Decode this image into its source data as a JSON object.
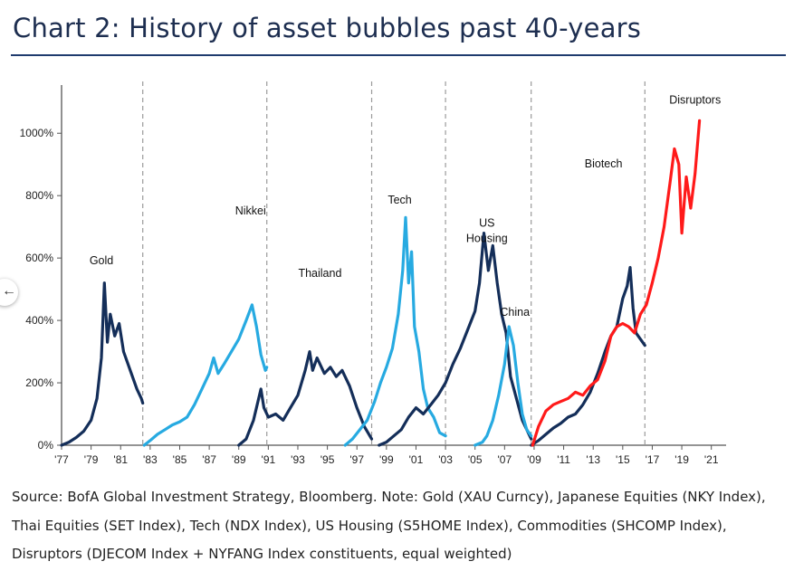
{
  "title": "Chart 2: History of asset bubbles past 40-years",
  "source_lines": [
    "Source: BofA Global Investment Strategy, Bloomberg. Note: Gold (XAU Curncy), Japanese Equities (NKY Index),",
    "Thai Equities (SET Index), Tech (NDX Index), US Housing (S5HOME Index), Commodities (SHCOMP Index),",
    "Disruptors (DJECOM Index + NYFANG Index constituents, equal weighted)"
  ],
  "colors": {
    "navy": "#142e59",
    "light_blue": "#27aae1",
    "red": "#ff1a1a",
    "title": "#1d2e50",
    "rule": "#1f3b6e"
  },
  "chart_data": {
    "type": "line",
    "xlim": [
      1977,
      2022
    ],
    "ylim": [
      0,
      1050
    ],
    "x_ticks": [
      1977,
      1979,
      1981,
      1983,
      1985,
      1987,
      1989,
      1991,
      1993,
      1995,
      1997,
      1999,
      2001,
      2003,
      2005,
      2007,
      2009,
      2011,
      2013,
      2015,
      2017,
      2019,
      2021
    ],
    "x_tick_labels": [
      "'77",
      "'79",
      "'81",
      "'83",
      "'85",
      "'87",
      "'89",
      "'91",
      "'93",
      "'95",
      "'97",
      "'99",
      "'01",
      "'03",
      "'05",
      "'07",
      "'09",
      "'11",
      "'13",
      "'15",
      "'17",
      "'19",
      "'21"
    ],
    "y_ticks": [
      0,
      200,
      400,
      600,
      800,
      1000
    ],
    "y_tick_labels": [
      "0%",
      "200%",
      "400%",
      "600%",
      "800%",
      "1000%"
    ],
    "grid": false,
    "period_dividers": [
      1982.5,
      1990.9,
      1998.0,
      2003.0,
      2008.8,
      2016.5
    ],
    "series": [
      {
        "name": "Gold",
        "color": "navy",
        "label_year": 1979.7,
        "label_value": 580,
        "points": [
          [
            1977.0,
            0
          ],
          [
            1977.5,
            10
          ],
          [
            1978.0,
            25
          ],
          [
            1978.5,
            45
          ],
          [
            1979.0,
            80
          ],
          [
            1979.4,
            150
          ],
          [
            1979.7,
            280
          ],
          [
            1979.9,
            520
          ],
          [
            1980.1,
            330
          ],
          [
            1980.3,
            420
          ],
          [
            1980.6,
            350
          ],
          [
            1980.9,
            390
          ],
          [
            1981.2,
            300
          ],
          [
            1981.5,
            260
          ],
          [
            1981.8,
            220
          ],
          [
            1982.1,
            180
          ],
          [
            1982.4,
            150
          ],
          [
            1982.5,
            135
          ]
        ]
      },
      {
        "name": "Nikkei",
        "color": "light_blue",
        "label_year": 1989.8,
        "label_value": 740,
        "points": [
          [
            1982.6,
            0
          ],
          [
            1983.0,
            15
          ],
          [
            1983.5,
            35
          ],
          [
            1984.0,
            50
          ],
          [
            1984.5,
            65
          ],
          [
            1985.0,
            75
          ],
          [
            1985.5,
            90
          ],
          [
            1986.0,
            130
          ],
          [
            1986.5,
            180
          ],
          [
            1987.0,
            230
          ],
          [
            1987.3,
            280
          ],
          [
            1987.6,
            230
          ],
          [
            1988.0,
            260
          ],
          [
            1988.5,
            300
          ],
          [
            1989.0,
            340
          ],
          [
            1989.5,
            400
          ],
          [
            1989.9,
            450
          ],
          [
            1990.2,
            380
          ],
          [
            1990.5,
            290
          ],
          [
            1990.8,
            240
          ],
          [
            1990.9,
            250
          ]
        ]
      },
      {
        "name": "Thailand",
        "color": "navy",
        "label_year": 1994.5,
        "label_value": 540,
        "points": [
          [
            1989.0,
            0
          ],
          [
            1989.5,
            20
          ],
          [
            1990.0,
            80
          ],
          [
            1990.5,
            180
          ],
          [
            1990.7,
            120
          ],
          [
            1991.0,
            90
          ],
          [
            1991.5,
            100
          ],
          [
            1992.0,
            80
          ],
          [
            1992.5,
            120
          ],
          [
            1993.0,
            160
          ],
          [
            1993.5,
            240
          ],
          [
            1993.8,
            300
          ],
          [
            1994.0,
            240
          ],
          [
            1994.3,
            280
          ],
          [
            1994.8,
            230
          ],
          [
            1995.2,
            250
          ],
          [
            1995.6,
            220
          ],
          [
            1996.0,
            240
          ],
          [
            1996.5,
            190
          ],
          [
            1997.0,
            120
          ],
          [
            1997.5,
            60
          ],
          [
            1998.0,
            20
          ]
        ]
      },
      {
        "name": "Tech",
        "color": "light_blue",
        "label_year": 1999.9,
        "label_value": 775,
        "points": [
          [
            1996.2,
            0
          ],
          [
            1996.7,
            20
          ],
          [
            1997.2,
            50
          ],
          [
            1997.7,
            80
          ],
          [
            1998.2,
            140
          ],
          [
            1998.6,
            200
          ],
          [
            1999.0,
            250
          ],
          [
            1999.4,
            310
          ],
          [
            1999.8,
            420
          ],
          [
            2000.1,
            560
          ],
          [
            2000.3,
            730
          ],
          [
            2000.5,
            520
          ],
          [
            2000.7,
            620
          ],
          [
            2000.9,
            380
          ],
          [
            2001.2,
            300
          ],
          [
            2001.5,
            180
          ],
          [
            2001.8,
            120
          ],
          [
            2002.2,
            90
          ],
          [
            2002.6,
            40
          ],
          [
            2003.0,
            30
          ]
        ]
      },
      {
        "name": "US Housing",
        "color": "navy",
        "label_year": 2005.8,
        "label_value": 700,
        "points": [
          [
            1998.5,
            0
          ],
          [
            1999.0,
            10
          ],
          [
            1999.5,
            30
          ],
          [
            2000.0,
            50
          ],
          [
            2000.5,
            90
          ],
          [
            2001.0,
            120
          ],
          [
            2001.5,
            100
          ],
          [
            2002.0,
            130
          ],
          [
            2002.5,
            160
          ],
          [
            2003.0,
            200
          ],
          [
            2003.5,
            260
          ],
          [
            2004.0,
            310
          ],
          [
            2004.5,
            370
          ],
          [
            2005.0,
            430
          ],
          [
            2005.3,
            520
          ],
          [
            2005.6,
            680
          ],
          [
            2005.9,
            560
          ],
          [
            2006.2,
            640
          ],
          [
            2006.5,
            520
          ],
          [
            2006.8,
            420
          ],
          [
            2007.1,
            360
          ],
          [
            2007.4,
            220
          ],
          [
            2007.8,
            150
          ],
          [
            2008.2,
            80
          ],
          [
            2008.8,
            20
          ]
        ]
      },
      {
        "name": "China",
        "color": "light_blue",
        "label_year": 2007.7,
        "label_value": 415,
        "points": [
          [
            2005.0,
            0
          ],
          [
            2005.5,
            10
          ],
          [
            2005.8,
            30
          ],
          [
            2006.2,
            80
          ],
          [
            2006.6,
            160
          ],
          [
            2007.0,
            260
          ],
          [
            2007.3,
            380
          ],
          [
            2007.6,
            320
          ],
          [
            2007.9,
            200
          ],
          [
            2008.2,
            100
          ],
          [
            2008.5,
            50
          ],
          [
            2008.8,
            30
          ]
        ]
      },
      {
        "name": "Biotech",
        "color": "navy",
        "label_year": 2013.7,
        "label_value": 890,
        "points": [
          [
            2008.8,
            0
          ],
          [
            2009.3,
            15
          ],
          [
            2009.8,
            35
          ],
          [
            2010.3,
            55
          ],
          [
            2010.8,
            70
          ],
          [
            2011.3,
            90
          ],
          [
            2011.8,
            100
          ],
          [
            2012.3,
            130
          ],
          [
            2012.8,
            170
          ],
          [
            2013.3,
            230
          ],
          [
            2013.8,
            300
          ],
          [
            2014.2,
            350
          ],
          [
            2014.6,
            380
          ],
          [
            2015.0,
            470
          ],
          [
            2015.3,
            510
          ],
          [
            2015.5,
            570
          ],
          [
            2015.7,
            440
          ],
          [
            2015.9,
            360
          ],
          [
            2016.2,
            340
          ],
          [
            2016.5,
            320
          ]
        ]
      },
      {
        "name": "Disruptors",
        "color": "red",
        "label_year": 2019.9,
        "label_value": 1095,
        "points": [
          [
            2008.9,
            0
          ],
          [
            2009.3,
            60
          ],
          [
            2009.8,
            110
          ],
          [
            2010.3,
            130
          ],
          [
            2010.8,
            140
          ],
          [
            2011.3,
            150
          ],
          [
            2011.8,
            170
          ],
          [
            2012.3,
            160
          ],
          [
            2012.8,
            190
          ],
          [
            2013.3,
            210
          ],
          [
            2013.8,
            270
          ],
          [
            2014.2,
            350
          ],
          [
            2014.6,
            380
          ],
          [
            2015.0,
            390
          ],
          [
            2015.4,
            380
          ],
          [
            2015.8,
            360
          ],
          [
            2016.2,
            420
          ],
          [
            2016.6,
            450
          ],
          [
            2017.0,
            520
          ],
          [
            2017.4,
            600
          ],
          [
            2017.8,
            700
          ],
          [
            2018.2,
            840
          ],
          [
            2018.5,
            950
          ],
          [
            2018.8,
            900
          ],
          [
            2019.0,
            680
          ],
          [
            2019.3,
            860
          ],
          [
            2019.6,
            760
          ],
          [
            2019.9,
            870
          ],
          [
            2020.2,
            1040
          ]
        ]
      }
    ]
  }
}
